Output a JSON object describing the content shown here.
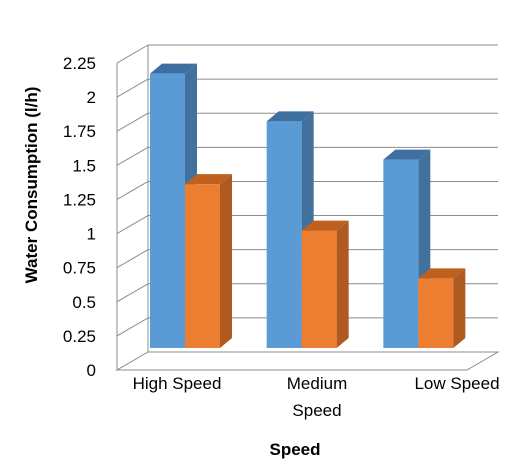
{
  "chart_data": {
    "type": "bar",
    "title": "",
    "xlabel": "Speed",
    "ylabel": "Water Consumption  (l/h)",
    "categories": [
      [
        "High Speed"
      ],
      [
        "Medium",
        "Speed"
      ],
      [
        "Low Speed"
      ]
    ],
    "series": [
      {
        "values": [
          2.04,
          1.69,
          1.41
        ],
        "color": "#5b9bd5",
        "side_color": "#41719c",
        "top_color": "#3d6fa0"
      },
      {
        "values": [
          1.23,
          0.89,
          0.54
        ],
        "color": "#ed7d31",
        "side_color": "#ae5a21",
        "top_color": "#c0601f"
      }
    ],
    "ylim": [
      0,
      2.25
    ],
    "yticks": [
      "0",
      "0.25",
      "0.5",
      "0.75",
      "1",
      "1.25",
      "1.5",
      "1.75",
      "2",
      "2.25"
    ],
    "grid": true,
    "style": "3d-clustered-column"
  }
}
